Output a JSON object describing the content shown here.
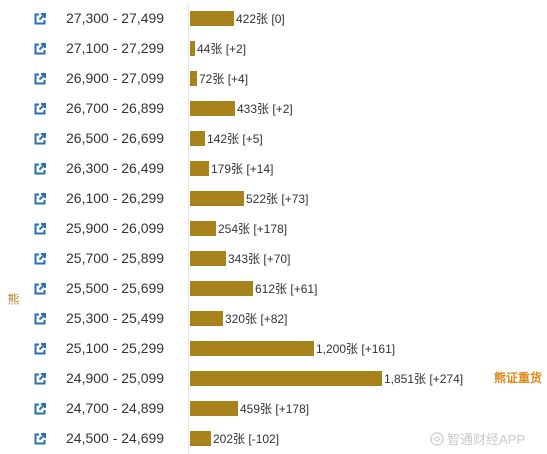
{
  "side_label": "熊",
  "scale_max": 1851,
  "rows": [
    {
      "range": "27,300 - 27,499",
      "count": 422,
      "label": "422张",
      "change": "[0]"
    },
    {
      "range": "27,100 - 27,299",
      "count": 44,
      "label": "44张",
      "change": "[+2]"
    },
    {
      "range": "26,900 - 27,099",
      "count": 72,
      "label": "72张",
      "change": "[+4]"
    },
    {
      "range": "26,700 - 26,899",
      "count": 433,
      "label": "433张",
      "change": "[+2]"
    },
    {
      "range": "26,500 - 26,699",
      "count": 142,
      "label": "142张",
      "change": "[+5]"
    },
    {
      "range": "26,300 - 26,499",
      "count": 179,
      "label": "179张",
      "change": "[+14]"
    },
    {
      "range": "26,100 - 26,299",
      "count": 522,
      "label": "522张",
      "change": "[+73]"
    },
    {
      "range": "25,900 - 26,099",
      "count": 254,
      "label": "254张",
      "change": "[+178]"
    },
    {
      "range": "25,700 - 25,899",
      "count": 343,
      "label": "343张",
      "change": "[+70]"
    },
    {
      "range": "25,500 - 25,699",
      "count": 612,
      "label": "612张",
      "change": "[+61]"
    },
    {
      "range": "25,300 - 25,499",
      "count": 320,
      "label": "320张",
      "change": "[+82]"
    },
    {
      "range": "25,100 - 25,299",
      "count": 1200,
      "label": "1,200张",
      "change": "[+161]"
    },
    {
      "range": "24,900 - 25,099",
      "count": 1851,
      "label": "1,851张",
      "change": "[+274]",
      "tag": "熊证重货"
    },
    {
      "range": "24,700 - 24,899",
      "count": 459,
      "label": "459张",
      "change": "[+178]"
    },
    {
      "range": "24,500 - 24,699",
      "count": 202,
      "label": "202张",
      "change": "[-102]"
    }
  ],
  "watermark": "智通财经APP",
  "colors": {
    "bar": "#a8821a",
    "tag": "#e08a1c",
    "icon": "#2a6fb0"
  }
}
